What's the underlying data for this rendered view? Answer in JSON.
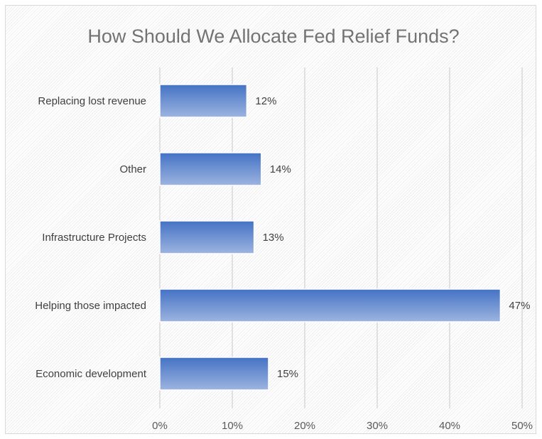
{
  "chart_data": {
    "type": "bar",
    "orientation": "horizontal",
    "title": "How Should We Allocate Fed Relief Funds?",
    "categories": [
      "Replacing lost revenue",
      "Other",
      "Infrastructure Projects",
      "Helping those impacted",
      "Economic development"
    ],
    "values": [
      12,
      14,
      13,
      47,
      15
    ],
    "data_labels": [
      "12%",
      "14%",
      "13%",
      "47%",
      "15%"
    ],
    "xlim": [
      0,
      50
    ],
    "x_ticks": [
      0,
      10,
      20,
      30,
      40,
      50
    ],
    "x_tick_labels": [
      "0%",
      "10%",
      "20%",
      "30%",
      "40%",
      "50%"
    ],
    "xlabel": "",
    "ylabel": "",
    "grid": "vertical",
    "legend": "none",
    "colors": {
      "bar_top": "#4472c4",
      "bar_bottom": "#9db4e0",
      "grid": "#d9d9d9",
      "title": "#737373"
    }
  }
}
